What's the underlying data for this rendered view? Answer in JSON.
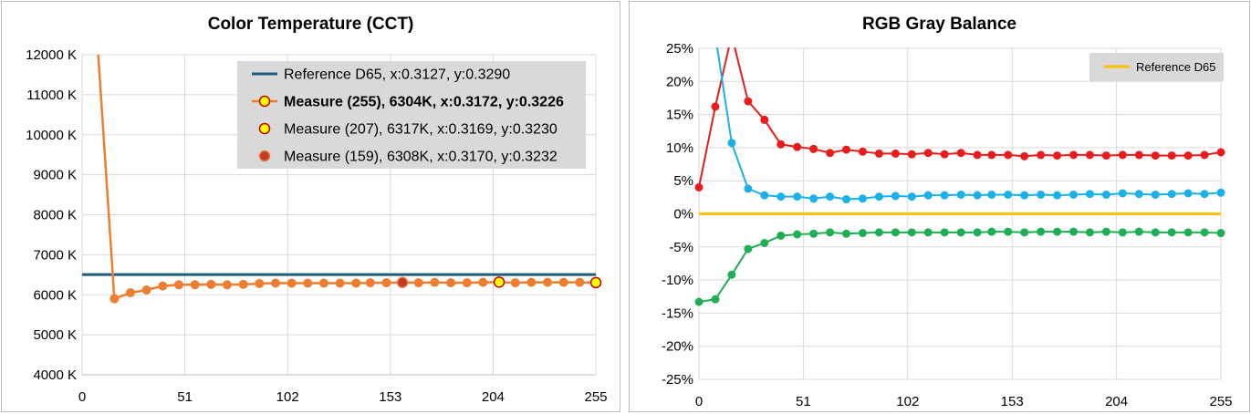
{
  "chart_data": [
    {
      "type": "line",
      "title": "Color Temperature (CCT)",
      "ylim": [
        4000,
        12000
      ],
      "xlim": [
        0,
        255
      ],
      "y_ticks": [
        4000,
        5000,
        6000,
        7000,
        8000,
        9000,
        10000,
        11000,
        12000
      ],
      "y_tick_labels": [
        "4000 K",
        "5000 K",
        "6000 K",
        "7000 K",
        "8000 K",
        "9000 K",
        "10000 K",
        "11000 K",
        "12000 K"
      ],
      "x_ticks": [
        0,
        51,
        102,
        153,
        204,
        255
      ],
      "x_tick_labels": [
        "0",
        "51",
        "102",
        "153",
        "204",
        "255"
      ],
      "grid": true,
      "legend_position": "top-right",
      "series": [
        {
          "name": "Reference D65, x:0.3127, y:0.3290",
          "color": "#1f5c7a",
          "x": [
            0,
            255
          ],
          "values": [
            6504,
            6504
          ]
        },
        {
          "name": "Measure (255), 6304K, x:0.3172, y:0.3226",
          "color": "#ed7d31",
          "marker_color": "#ed7d31",
          "x": [
            8,
            16,
            24,
            32,
            40,
            48,
            56,
            64,
            72,
            80,
            88,
            96,
            104,
            112,
            120,
            128,
            136,
            143,
            151,
            159,
            167,
            175,
            183,
            191,
            199,
            207,
            215,
            223,
            231,
            239,
            247,
            255
          ],
          "values": [
            12000,
            5900,
            6050,
            6120,
            6220,
            6250,
            6250,
            6260,
            6250,
            6260,
            6280,
            6290,
            6290,
            6290,
            6290,
            6290,
            6290,
            6300,
            6300,
            6308,
            6300,
            6310,
            6300,
            6300,
            6310,
            6317,
            6300,
            6310,
            6310,
            6310,
            6310,
            6304
          ]
        },
        {
          "name": "Measure (207), 6317K, x:0.3169, y:0.3230",
          "color": "#ffff00",
          "stroke": "#c00000",
          "x": [
            207
          ],
          "values": [
            6317
          ]
        },
        {
          "name": "Measure (159), 6308K, x:0.3170, y:0.3232",
          "color": "#c0392b",
          "stroke": "#ed7d31",
          "x": [
            159
          ],
          "values": [
            6308
          ]
        }
      ]
    },
    {
      "type": "line",
      "title": "RGB Gray Balance",
      "ylim": [
        -25,
        25
      ],
      "xlim": [
        0,
        255
      ],
      "y_ticks": [
        -25,
        -20,
        -15,
        -10,
        -5,
        0,
        5,
        10,
        15,
        20,
        25
      ],
      "y_tick_labels": [
        "-25%",
        "-20%",
        "-15%",
        "-10%",
        "-5%",
        "0%",
        "5%",
        "10%",
        "15%",
        "20%",
        "25%"
      ],
      "x_ticks": [
        0,
        51,
        102,
        153,
        204,
        255
      ],
      "x_tick_labels": [
        "0",
        "51",
        "102",
        "153",
        "204",
        "255"
      ],
      "grid": true,
      "legend_position": "top-right",
      "x": [
        0,
        8,
        16,
        24,
        32,
        40,
        48,
        56,
        64,
        72,
        80,
        88,
        96,
        104,
        112,
        120,
        128,
        136,
        143,
        151,
        159,
        167,
        175,
        183,
        191,
        199,
        207,
        215,
        223,
        231,
        239,
        247,
        255
      ],
      "series": [
        {
          "name": "Reference D65",
          "color": "#ffc000",
          "x": [
            0,
            255
          ],
          "values": [
            0,
            0
          ]
        },
        {
          "color": "#e81c1c",
          "values": [
            4.0,
            16.2,
            27.0,
            17.0,
            14.2,
            10.5,
            10.1,
            9.8,
            9.2,
            9.7,
            9.4,
            9.1,
            9.1,
            9.0,
            9.2,
            9.0,
            9.2,
            8.9,
            8.9,
            8.9,
            8.7,
            8.9,
            8.8,
            8.9,
            8.9,
            8.8,
            8.9,
            8.9,
            8.8,
            8.8,
            8.8,
            8.9,
            9.3
          ]
        },
        {
          "color": "#1cb0e8",
          "values": [
            27.0,
            27.0,
            10.7,
            3.8,
            2.8,
            2.6,
            2.6,
            2.3,
            2.6,
            2.2,
            2.3,
            2.6,
            2.7,
            2.6,
            2.8,
            2.8,
            2.9,
            2.8,
            2.9,
            2.9,
            2.8,
            2.9,
            2.8,
            2.9,
            3.0,
            2.9,
            3.1,
            3.0,
            2.9,
            3.0,
            3.1,
            3.0,
            3.2
          ]
        },
        {
          "color": "#1fae55",
          "values": [
            -13.3,
            -12.9,
            -9.2,
            -5.3,
            -4.4,
            -3.3,
            -3.1,
            -3.0,
            -2.8,
            -3.0,
            -2.9,
            -2.8,
            -2.8,
            -2.8,
            -2.8,
            -2.8,
            -2.8,
            -2.8,
            -2.7,
            -2.7,
            -2.8,
            -2.7,
            -2.7,
            -2.7,
            -2.8,
            -2.7,
            -2.8,
            -2.7,
            -2.8,
            -2.8,
            -2.8,
            -2.8,
            -2.9
          ]
        }
      ]
    }
  ]
}
